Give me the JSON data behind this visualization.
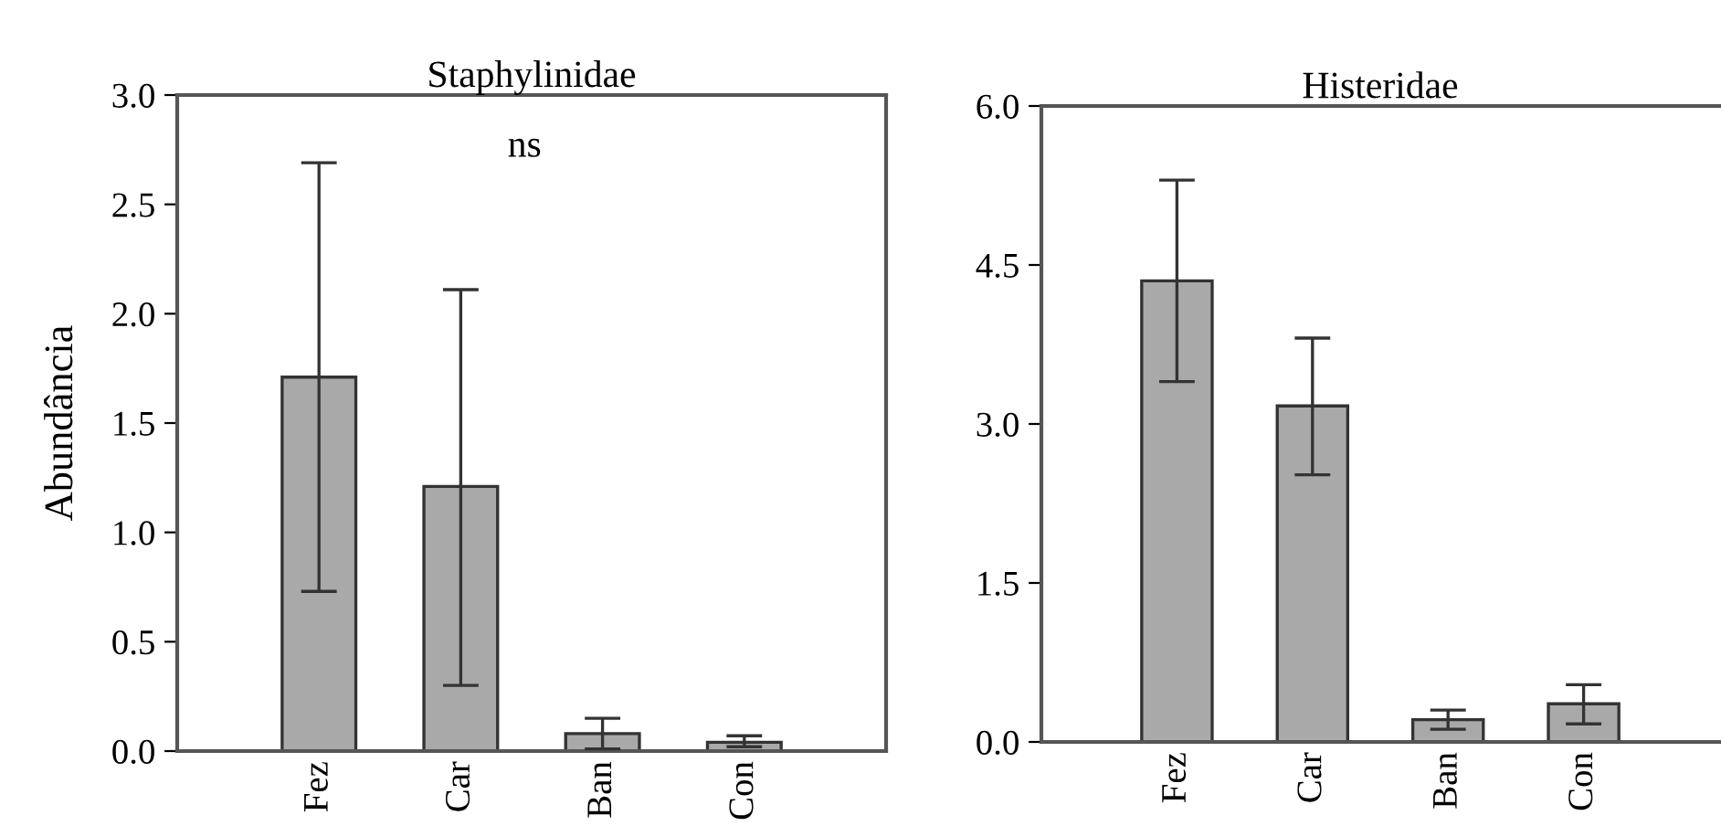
{
  "chart_data": [
    {
      "type": "bar",
      "title": "Staphylinidae",
      "ylabel": "Abundância",
      "categories": [
        "Fez",
        "Car",
        "Ban",
        "Con"
      ],
      "values": [
        1.71,
        1.21,
        0.08,
        0.04
      ],
      "color": "#a9a9a9",
      "errors": [
        [
          0.73,
          2.69
        ],
        [
          0.3,
          2.11
        ],
        [
          0.01,
          0.15
        ],
        [
          0.02,
          0.07
        ]
      ],
      "ylim": [
        0,
        3.0
      ],
      "yticks": [
        {
          "value": 0,
          "label": "0.0"
        },
        {
          "value": 0.5,
          "label": "0.5"
        },
        {
          "value": 1.0,
          "label": "1.0"
        },
        {
          "value": 1.5,
          "label": "1.5"
        },
        {
          "value": 2.0,
          "label": "2.0"
        },
        {
          "value": 2.5,
          "label": "2.5"
        },
        {
          "value": 3.0,
          "label": "3.0"
        }
      ],
      "annotations": [
        "ns"
      ],
      "grid": false,
      "legend": false
    },
    {
      "type": "bar",
      "title": "Histeridae",
      "categories": [
        "Fez",
        "Car",
        "Ban",
        "Con"
      ],
      "values": [
        4.35,
        3.17,
        0.21,
        0.36
      ],
      "color": "#a9a9a9",
      "errors": [
        [
          3.4,
          5.3
        ],
        [
          2.52,
          3.81
        ],
        [
          0.12,
          0.3
        ],
        [
          0.17,
          0.54
        ]
      ],
      "ylim": [
        0,
        6.0
      ],
      "yticks": [
        {
          "value": 0,
          "label": "0.0"
        },
        {
          "value": 1.5,
          "label": "1.5"
        },
        {
          "value": 3.0,
          "label": "3.0"
        },
        {
          "value": 4.5,
          "label": "4.5"
        },
        {
          "value": 6.0,
          "label": "6.0"
        }
      ],
      "grid": false,
      "legend": false
    }
  ]
}
